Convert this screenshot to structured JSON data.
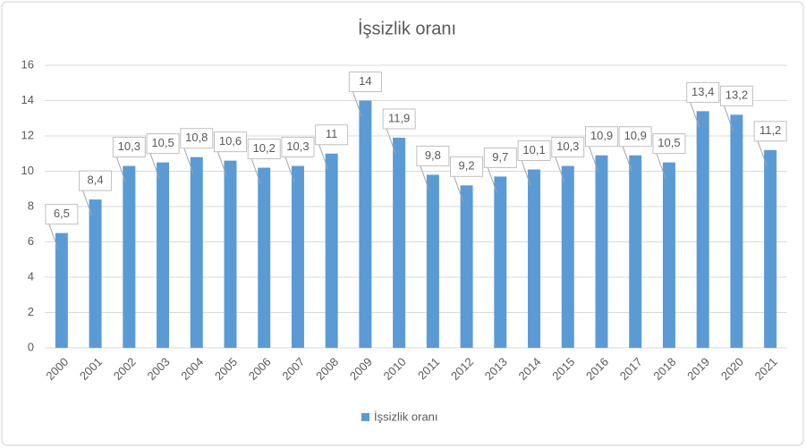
{
  "chart_data": {
    "type": "bar",
    "title": "İşsizlik oranı",
    "categories": [
      "2000",
      "2001",
      "2002",
      "2003",
      "2004",
      "2005",
      "2006",
      "2007",
      "2008",
      "2009",
      "2010",
      "2011",
      "2012",
      "2013",
      "2014",
      "2015",
      "2016",
      "2017",
      "2018",
      "2019",
      "2020",
      "2021"
    ],
    "series": [
      {
        "name": "İşsizlik oranı",
        "color": "#5b9bd5",
        "values": [
          6.5,
          8.4,
          10.3,
          10.5,
          10.8,
          10.6,
          10.2,
          10.3,
          11,
          14,
          11.9,
          9.8,
          9.2,
          9.7,
          10.1,
          10.3,
          10.9,
          10.9,
          10.5,
          13.4,
          13.2,
          11.2
        ],
        "value_labels": [
          "6,5",
          "8,4",
          "10,3",
          "10,5",
          "10,8",
          "10,6",
          "10,2",
          "10,3",
          "11",
          "14",
          "11,9",
          "9,8",
          "9,2",
          "9,7",
          "10,1",
          "10,3",
          "10,9",
          "10,9",
          "10,5",
          "13,4",
          "13,2",
          "11,2"
        ]
      }
    ],
    "ylim": [
      0,
      16
    ],
    "yticks": [
      0,
      2,
      4,
      6,
      8,
      10,
      12,
      14,
      16
    ],
    "grid": true,
    "legend": "bottom"
  }
}
